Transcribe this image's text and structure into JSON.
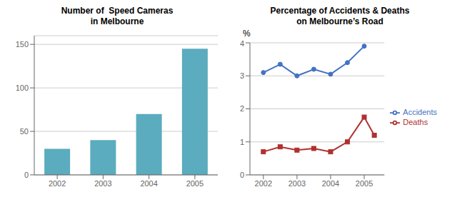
{
  "chart_data": [
    {
      "type": "bar",
      "title": "Number of  Speed Cameras\nin Melbourne",
      "categories": [
        "2002",
        "2003",
        "2004",
        "2005"
      ],
      "values": [
        30,
        40,
        70,
        145
      ],
      "color": "#5aacbe",
      "ylim": [
        0,
        160
      ],
      "yticks": [
        0,
        50,
        100,
        150
      ],
      "grid": true
    },
    {
      "type": "line",
      "title": "Percentage of Accidents & Deaths\non Melbourne’s Road",
      "annotations": [
        "%"
      ],
      "x": [
        2002,
        2002.5,
        2003,
        2003.5,
        2004,
        2004.5,
        2005,
        2005.3
      ],
      "series": [
        {
          "name": "Accidents",
          "color": "#4472c4",
          "marker": "circle",
          "values": [
            3.1,
            3.35,
            3.0,
            3.2,
            3.05,
            3.4,
            3.9,
            null
          ]
        },
        {
          "name": "Deaths",
          "color": "#b03030",
          "marker": "square",
          "values": [
            0.7,
            0.85,
            0.75,
            0.8,
            0.7,
            1.0,
            1.75,
            1.2
          ]
        }
      ],
      "xlim": [
        2001.6,
        2005.6
      ],
      "xticks": [
        2002,
        2003,
        2004,
        2005
      ],
      "ylim": [
        0,
        4
      ],
      "yticks": [
        0,
        1,
        2,
        3,
        4
      ],
      "grid": true,
      "legend": "right"
    }
  ]
}
